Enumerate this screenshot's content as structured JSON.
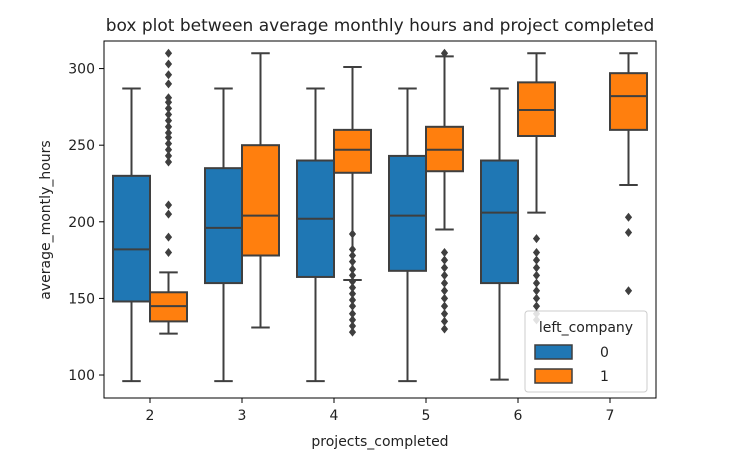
{
  "chart_data": {
    "type": "box",
    "title": "box plot between average monthly hours and project completed",
    "xlabel": "projects_completed",
    "ylabel": "average_montly_hours",
    "ylim": [
      85,
      318
    ],
    "yticks": [
      100,
      150,
      200,
      250,
      300
    ],
    "categories": [
      "2",
      "3",
      "4",
      "5",
      "6",
      "7"
    ],
    "grid": false,
    "legend": {
      "title": "left_company",
      "position": "lower-right"
    },
    "series": [
      {
        "name": "0",
        "color": "#1f77b4",
        "boxes": [
          {
            "category": "2",
            "whislo": 96,
            "q1": 148,
            "med": 182,
            "q3": 230,
            "whishi": 287,
            "fliers": []
          },
          {
            "category": "3",
            "whislo": 96,
            "q1": 160,
            "med": 196,
            "q3": 235,
            "whishi": 287,
            "fliers": []
          },
          {
            "category": "4",
            "whislo": 96,
            "q1": 164,
            "med": 202,
            "q3": 240,
            "whishi": 287,
            "fliers": []
          },
          {
            "category": "5",
            "whislo": 96,
            "q1": 168,
            "med": 204,
            "q3": 243,
            "whishi": 287,
            "fliers": []
          },
          {
            "category": "6",
            "whislo": 97,
            "q1": 160,
            "med": 206,
            "q3": 240,
            "whishi": 287,
            "fliers": []
          },
          null
        ]
      },
      {
        "name": "1",
        "color": "#ff7f0e",
        "boxes": [
          {
            "category": "2",
            "whislo": 127,
            "q1": 135,
            "med": 145,
            "q3": 154,
            "whishi": 167,
            "fliers": [
              180,
              190,
              205,
              211,
              239,
              243,
              247,
              251,
              255,
              258,
              262,
              266,
              270,
              274,
              278,
              281,
              290,
              296,
              303,
              310
            ]
          },
          {
            "category": "3",
            "whislo": 131,
            "q1": 178,
            "med": 204,
            "q3": 250,
            "whishi": 310,
            "fliers": []
          },
          {
            "category": "4",
            "whislo": 162,
            "q1": 232,
            "med": 247,
            "q3": 260,
            "whishi": 301,
            "fliers": [
              128,
              132,
              136,
              140,
              145,
              149,
              153,
              157,
              161,
              165,
              169,
              174,
              178,
              182,
              192
            ]
          },
          {
            "category": "5",
            "whislo": 195,
            "q1": 233,
            "med": 247,
            "q3": 262,
            "whishi": 308,
            "fliers": [
              130,
              135,
              140,
              145,
              150,
              155,
              160,
              165,
              170,
              175,
              180,
              310
            ]
          },
          {
            "category": "6",
            "whislo": 206,
            "q1": 256,
            "med": 273,
            "q3": 291,
            "whishi": 310,
            "fliers": [
              136,
              140,
              145,
              150,
              155,
              160,
              165,
              170,
              175,
              180,
              189
            ]
          },
          {
            "category": "7",
            "whislo": 224,
            "q1": 260,
            "med": 282,
            "q3": 297,
            "whishi": 310,
            "fliers": [
              155,
              193,
              203
            ]
          }
        ]
      }
    ]
  }
}
